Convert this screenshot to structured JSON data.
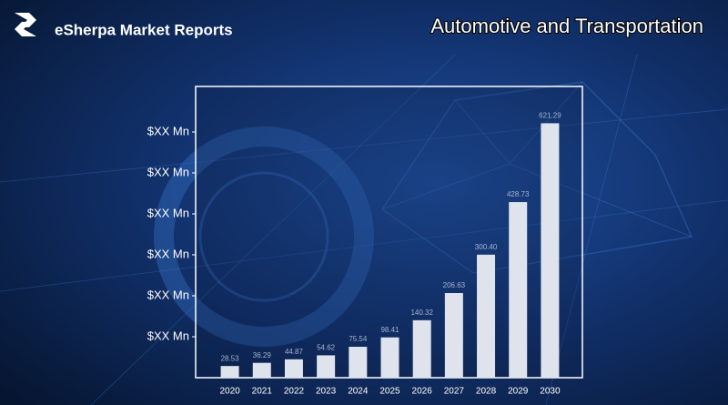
{
  "brand": "eSherpa Market Reports",
  "chart_data": {
    "type": "bar",
    "title": "Automotive and Transportation",
    "categories": [
      "2020",
      "2021",
      "2022",
      "2023",
      "2024",
      "2025",
      "2026",
      "2027",
      "2028",
      "2029",
      "2030"
    ],
    "values": [
      28.53,
      36.29,
      44.87,
      54.62,
      75.54,
      98.41,
      140.32,
      206.63,
      300.4,
      428.73,
      621.29
    ],
    "value_labels": [
      "28.53",
      "36.29",
      "44.87",
      "54.62",
      "75.54",
      "98.41",
      "140.32",
      "206.63",
      "300.40",
      "428.73",
      "621.29"
    ],
    "color": "#dfe3ec",
    "ylim": [
      0,
      700
    ],
    "yticks": [
      {
        "value": 100,
        "label": "$XX Mn"
      },
      {
        "value": 200,
        "label": "$XX Mn"
      },
      {
        "value": 300,
        "label": "$XX Mn"
      },
      {
        "value": 400,
        "label": "$XX Mn"
      },
      {
        "value": 500,
        "label": "$XX Mn"
      },
      {
        "value": 600,
        "label": "$XX Mn"
      }
    ],
    "grid": false
  }
}
